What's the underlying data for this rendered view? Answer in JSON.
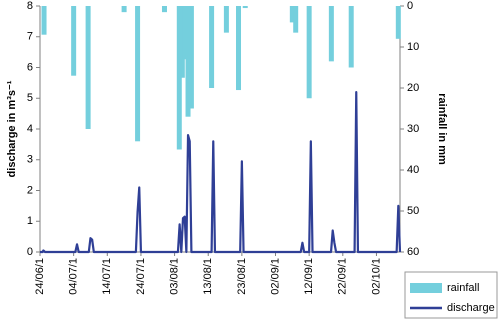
{
  "chart_data": {
    "type": "bar_line",
    "y_label": "discharge in m³s⁻¹",
    "y2_label": "rainfall in mm",
    "xlim": [
      0,
      107
    ],
    "xticks": [
      {
        "value": 0,
        "label": "24/06/1"
      },
      {
        "value": 10,
        "label": "04/07/1"
      },
      {
        "value": 20,
        "label": "14/07/1"
      },
      {
        "value": 30,
        "label": "24/07/1"
      },
      {
        "value": 40,
        "label": "03/08/1"
      },
      {
        "value": 50,
        "label": "13/08/1"
      },
      {
        "value": 60,
        "label": "23/08/1"
      },
      {
        "value": 70,
        "label": "02/09/1"
      },
      {
        "value": 80,
        "label": "12/09/1"
      },
      {
        "value": 90,
        "label": "22/09/1"
      },
      {
        "value": 100,
        "label": "02/10/1"
      }
    ],
    "ylim": [
      0,
      8
    ],
    "yticks": [
      0,
      1,
      2,
      3,
      4,
      5,
      6,
      7,
      8
    ],
    "y2lim": [
      60,
      0
    ],
    "y2ticks": [
      0,
      10,
      20,
      30,
      40,
      50,
      60
    ],
    "legend": "bottom-right",
    "series": [
      {
        "name": "rainfall",
        "type": "bar",
        "axis": "y2",
        "color": "#74cfdd",
        "x": [
          1.2,
          10,
          14.3,
          25,
          29,
          37,
          41.4,
          42.3,
          43,
          44,
          45,
          51,
          55.4,
          59,
          61,
          75,
          76,
          80,
          86.6,
          92.5,
          106.5
        ],
        "values": [
          7,
          17,
          30,
          1.5,
          33,
          1.5,
          35,
          17.5,
          13,
          27,
          25,
          20,
          6.5,
          20.5,
          0.5,
          4,
          6.5,
          22.5,
          13.5,
          15,
          8
        ]
      },
      {
        "name": "discharge",
        "type": "line",
        "color": "#2f3f96",
        "x": [
          0,
          0.8,
          1,
          1.5,
          10.5,
          11,
          11.5,
          14.5,
          15,
          15.5,
          16,
          28.5,
          29,
          29.5,
          30,
          41,
          41.5,
          42,
          42.5,
          43,
          43.5,
          44,
          44.5,
          45,
          51,
          51.5,
          52,
          59.5,
          60,
          60.5,
          77.5,
          78,
          78.5,
          80,
          80.5,
          81,
          86.5,
          87,
          87.5,
          88,
          93.5,
          94,
          94.5,
          106,
          106.5,
          107
        ],
        "values": [
          0,
          0,
          0.05,
          0,
          0,
          0.25,
          0,
          0,
          0.45,
          0.4,
          0,
          0,
          1.3,
          2.1,
          0,
          0,
          0.9,
          0,
          1.1,
          1.15,
          0,
          3.8,
          3.6,
          0,
          0,
          3.6,
          0,
          0,
          2.95,
          0,
          0,
          0.3,
          0,
          0,
          3.6,
          0,
          0,
          0.7,
          0.3,
          0,
          0,
          5.2,
          0,
          0,
          1.5,
          0
        ]
      }
    ]
  }
}
